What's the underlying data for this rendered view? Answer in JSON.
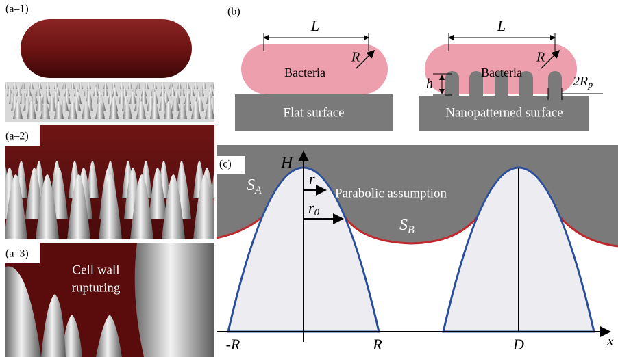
{
  "panel_a": {
    "labels": [
      "(a–1)",
      "(a–2)",
      "(a–3)"
    ],
    "annotation": [
      "Cell wall",
      "rupturing"
    ]
  },
  "panel_b": {
    "label": "(b)",
    "left": {
      "length": "L",
      "radius": "R",
      "cell": "Bacteria",
      "surface": "Flat surface"
    },
    "right": {
      "length": "L",
      "radius": "R",
      "cell": "Bacteria",
      "height": "h",
      "pillar": {
        "base": "2R",
        "sub": "p"
      },
      "surface": "Nanopatterned surface"
    }
  },
  "panel_c": {
    "label": "(c)",
    "H": "H",
    "SA": {
      "base": "S",
      "sub": "A"
    },
    "SB": {
      "base": "S",
      "sub": "B"
    },
    "r": "r",
    "r0": {
      "base": "r",
      "sub": "0"
    },
    "note": "Parabolic assumption",
    "x_labels": [
      "-R",
      "R",
      "D"
    ],
    "x_axis": "x"
  }
}
